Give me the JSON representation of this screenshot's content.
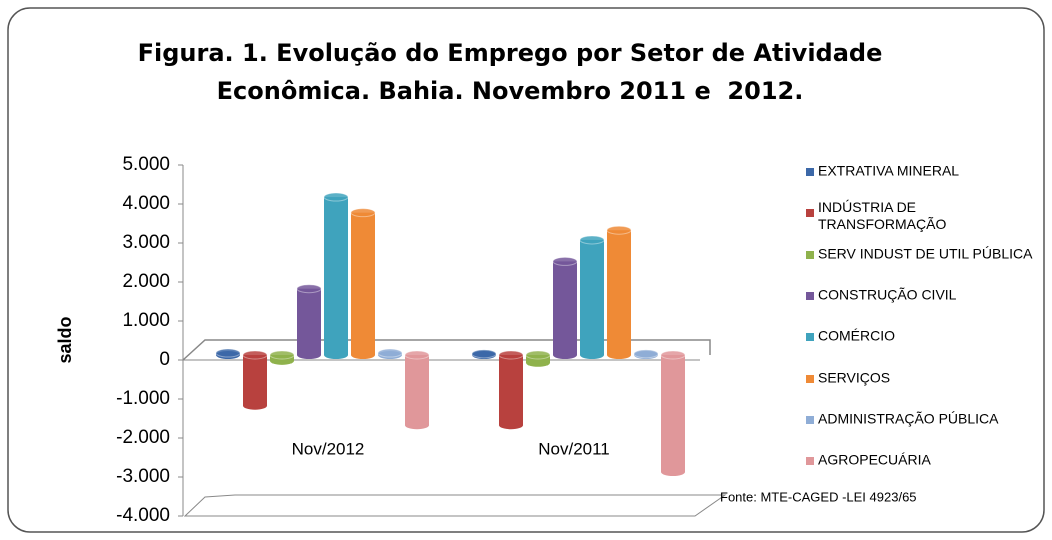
{
  "chart_data": {
    "type": "bar3d",
    "title": "Figura. 1. Evolução do Emprego por Setor de Atividade Econômica. Bahia. Novembro 2011 e  2012.",
    "y_label": "saldo",
    "source": "Fonte: MTE-CAGED -LEI 4923/65",
    "categories": [
      "Nov/2012",
      "Nov/2011"
    ],
    "series": [
      {
        "name": "EXTRATIVA MINERAL",
        "color": "#3c68a8",
        "values": [
          50,
          30
        ]
      },
      {
        "name": "INDÚSTRIA DE TRANSFORMAÇÃO",
        "color": "#b8413e",
        "values": [
          -1300,
          -1800
        ]
      },
      {
        "name": "SERV INDUST DE UTIL PÚBLICA",
        "color": "#8fb24c",
        "values": [
          -150,
          -200
        ]
      },
      {
        "name": "CONSTRUÇÃO CIVIL",
        "color": "#74579a",
        "values": [
          1700,
          2400
        ]
      },
      {
        "name": "COMÉRCIO",
        "color": "#3fa3bd",
        "values": [
          4050,
          2950
        ]
      },
      {
        "name": "SERVIÇOS",
        "color": "#ef8a36",
        "values": [
          3650,
          3200
        ]
      },
      {
        "name": "ADMINISTRAÇÃO PÚBLICA",
        "color": "#8fadd6",
        "values": [
          50,
          30
        ]
      },
      {
        "name": "AGROPECUÁRIA",
        "color": "#e0979a",
        "values": [
          -1800,
          -3000
        ]
      }
    ],
    "ylim": [
      -4000,
      5000
    ],
    "yticks": [
      {
        "value": -4000,
        "label": "-4.000"
      },
      {
        "value": -3000,
        "label": "-3.000"
      },
      {
        "value": -2000,
        "label": "-2.000"
      },
      {
        "value": -1000,
        "label": "-1.000"
      },
      0,
      {
        "value": 1000,
        "label": "1.000"
      },
      {
        "value": 2000,
        "label": "2.000"
      },
      {
        "value": 3000,
        "label": "3.000"
      },
      {
        "value": 4000,
        "label": "4.000"
      },
      {
        "value": 5000,
        "label": "5.000"
      }
    ],
    "legend": "right"
  }
}
